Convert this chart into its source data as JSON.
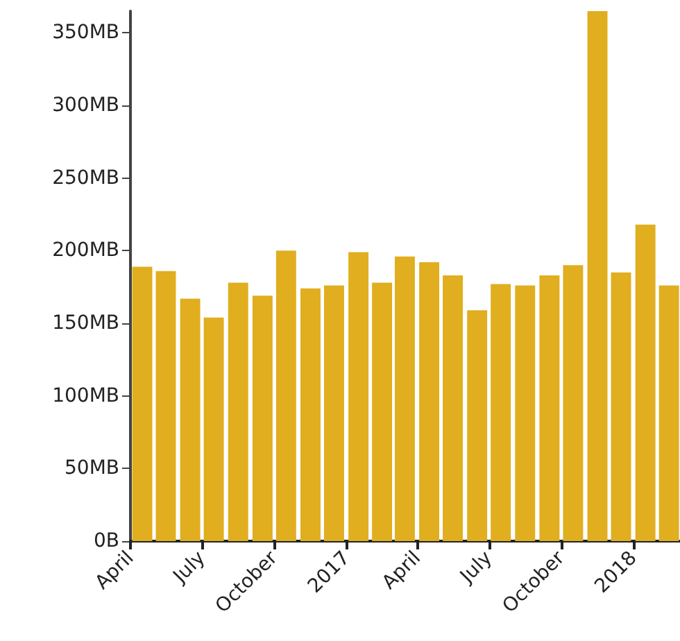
{
  "chart_data": {
    "type": "bar",
    "color": "#e0ae1e",
    "x": [
      "2016-04-16",
      "2016-05-16",
      "2016-06-16",
      "2016-07-16",
      "2016-08-16",
      "2016-09-16",
      "2016-10-16",
      "2016-11-16",
      "2016-12-16",
      "2017-01-16",
      "2017-02-15",
      "2017-03-16",
      "2017-04-16",
      "2017-05-16",
      "2017-06-16",
      "2017-07-16",
      "2017-08-16",
      "2017-09-16",
      "2017-10-16",
      "2017-11-16",
      "2017-12-16",
      "2018-01-16",
      "2018-02-15"
    ],
    "values": [
      189,
      186,
      167,
      154,
      178,
      169,
      200,
      174,
      176,
      199,
      178,
      196,
      192,
      183,
      159,
      177,
      176,
      183,
      190,
      365,
      185,
      218,
      176
    ],
    "xlim": [
      "2016-04",
      "2018-03"
    ],
    "xticks": [
      {
        "value": "2016-04",
        "label": "April"
      },
      {
        "value": "2016-07",
        "label": "July"
      },
      {
        "value": "2016-10",
        "label": "October"
      },
      {
        "value": "2017-01",
        "label": "2017"
      },
      {
        "value": "2017-04",
        "label": "April"
      },
      {
        "value": "2017-07",
        "label": "July"
      },
      {
        "value": "2017-10",
        "label": "October"
      },
      {
        "value": "2018-01",
        "label": "2018"
      }
    ],
    "ylim": [
      0,
      365
    ],
    "yticks": [
      {
        "value": 0,
        "label": "0B"
      },
      {
        "value": 50,
        "label": "50MB"
      },
      {
        "value": 100,
        "label": "100MB"
      },
      {
        "value": 150,
        "label": "150MB"
      },
      {
        "value": 200,
        "label": "200MB"
      },
      {
        "value": 250,
        "label": "250MB"
      },
      {
        "value": 300,
        "label": "300MB"
      },
      {
        "value": 350,
        "label": "350MB"
      }
    ],
    "grid": false
  }
}
